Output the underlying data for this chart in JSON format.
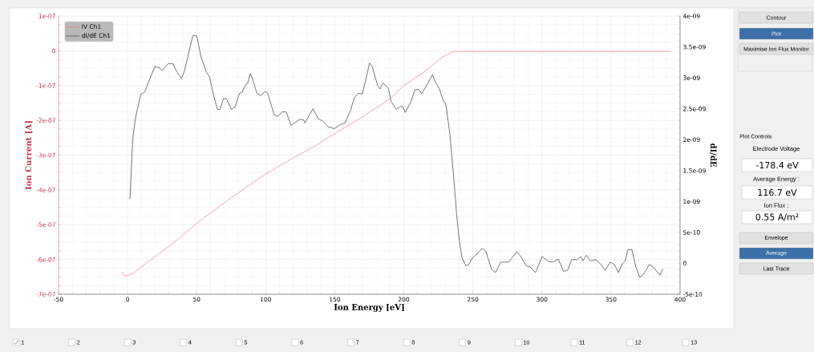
{
  "chart_data": {
    "type": "line",
    "xlabel": "Ion Energy [eV]",
    "ylabel": "Ion Current [A]",
    "y2label": "dI/dE",
    "xlim": [
      -50,
      400
    ],
    "xticks": [
      -50,
      0,
      50,
      100,
      150,
      200,
      250,
      300,
      350,
      400
    ],
    "ylim": [
      -7e-07,
      1e-07
    ],
    "yticks": [
      {
        "value": -7e-07,
        "label": "-7e-07"
      },
      {
        "value": -6e-07,
        "label": "-6e-07"
      },
      {
        "value": -5e-07,
        "label": "-5e-07"
      },
      {
        "value": -4e-07,
        "label": "-4e-07"
      },
      {
        "value": -3e-07,
        "label": "-3e-07"
      },
      {
        "value": -2e-07,
        "label": "-2e-07"
      },
      {
        "value": -1e-07,
        "label": "-1e-07"
      },
      0,
      {
        "value": 1e-07,
        "label": "1e-07"
      }
    ],
    "y2lim": [
      -5e-10,
      4e-09
    ],
    "y2ticks": [
      {
        "value": -5e-10,
        "label": "-5e-10"
      },
      0,
      {
        "value": 5e-10,
        "label": "5e-10"
      },
      {
        "value": 1e-09,
        "label": "1e-09"
      },
      {
        "value": 1.5e-09,
        "label": "1.5e-09"
      },
      {
        "value": 2e-09,
        "label": "2e-09"
      },
      {
        "value": 2.5e-09,
        "label": "2.5e-09"
      },
      {
        "value": 3e-09,
        "label": "3e-09"
      },
      {
        "value": 3.5e-09,
        "label": "3.5e-09"
      },
      {
        "value": 4e-09,
        "label": "4e-09"
      }
    ],
    "grid": true,
    "legend": "top left",
    "series": [
      {
        "name": "IV Ch1",
        "color": "#f47c7c",
        "x": [
          -4,
          -2,
          3,
          12,
          24,
          37,
          50,
          62,
          72,
          85,
          100,
          120,
          135,
          150,
          165,
          175,
          190,
          200,
          215,
          228,
          236,
          250,
          300,
          350,
          393
        ],
        "values": [
          -6.35e-07,
          -6.48e-07,
          -6.42e-07,
          -6.15e-07,
          -5.8e-07,
          -5.4e-07,
          -4.96e-07,
          -4.6e-07,
          -4.31e-07,
          -3.95e-07,
          -3.54e-07,
          -3.08e-07,
          -2.75e-07,
          -2.38e-07,
          -2.02e-07,
          -1.77e-07,
          -1.38e-07,
          -1e-07,
          -6e-08,
          -1.8e-08,
          -2e-09,
          -2e-09,
          -2e-09,
          -2e-09,
          -2e-09
        ]
      },
      {
        "name": "dI/dE Ch1",
        "color": "#3a3a3a",
        "axis": "y2",
        "x": [
          1.7,
          2.7,
          3.7,
          5.6,
          9.5,
          12.4,
          16.2,
          19.7,
          23,
          25,
          29.4,
          32.7,
          35.6,
          39,
          41,
          47.2,
          50.1,
          53,
          56.9,
          59.4,
          61.7,
          65,
          66.9,
          69.4,
          71.4,
          75.2,
          77.8,
          81,
          82.9,
          85.5,
          86.9,
          88.8,
          90.7,
          93.6,
          96.5,
          99.4,
          101.4,
          106.2,
          109,
          111.9,
          114.8,
          118.4,
          120.7,
          124.6,
          127.5,
          128.4,
          134.2,
          138.1,
          142,
          144.9,
          149.7,
          154.5,
          157.4,
          161.3,
          164.2,
          167.1,
          170,
          175.2,
          177.1,
          181,
          182.9,
          184.9,
          188.8,
          190.7,
          194.6,
          197.5,
          199.4,
          201,
          205.2,
          208.1,
          211,
          213,
          220.7,
          223.6,
          225.6,
          228.5,
          230.4,
          233.3,
          235.9,
          238.2,
          240.1,
          242.1,
          245,
          246.9,
          249.8,
          253.7,
          256.6,
          259.5,
          263.4,
          266.3,
          270.2,
          276,
          281.8,
          284.7,
          288.6,
          291.5,
          295.3,
          300.2,
          305,
          307.9,
          311.8,
          315.7,
          318.6,
          321.5,
          325.4,
          328.3,
          329.7,
          332.2,
          335.1,
          339,
          342.9,
          345.7,
          349.6,
          352.5,
          355.4,
          358.3,
          360.3,
          362.2,
          365.1,
          368,
          370.9,
          373.8,
          377.7,
          380.6,
          385.5,
          387.4
        ],
        "values": [
          1.04e-09,
          1.54e-09,
          2.01e-09,
          2.34e-09,
          2.73e-09,
          2.77e-09,
          2.99e-09,
          3.18e-09,
          3.16e-09,
          3.12e-09,
          3.23e-09,
          3.23e-09,
          3.1e-09,
          2.99e-09,
          3.1e-09,
          3.68e-09,
          3.68e-09,
          3.35e-09,
          3.1e-09,
          3.01e-09,
          2.77e-09,
          2.49e-09,
          2.49e-09,
          2.66e-09,
          2.67e-09,
          2.49e-09,
          2.53e-09,
          2.75e-09,
          2.77e-09,
          2.89e-09,
          2.91e-09,
          3.07e-09,
          2.97e-09,
          2.75e-09,
          2.71e-09,
          2.78e-09,
          2.75e-09,
          2.4e-09,
          2.38e-09,
          2.45e-09,
          2.45e-09,
          2.23e-09,
          2.27e-09,
          2.33e-09,
          2.32e-09,
          2.27e-09,
          2.5e-09,
          2.34e-09,
          2.29e-09,
          2.21e-09,
          2.18e-09,
          2.25e-09,
          2.27e-09,
          2.47e-09,
          2.68e-09,
          2.75e-09,
          2.74e-09,
          3.24e-09,
          3.18e-09,
          2.88e-09,
          2.82e-09,
          2.92e-09,
          2.83e-09,
          2.62e-09,
          2.49e-09,
          2.54e-09,
          2.53e-09,
          2.44e-09,
          2.62e-09,
          2.81e-09,
          2.81e-09,
          2.74e-09,
          3.05e-09,
          2.9e-09,
          2.83e-09,
          2.64e-09,
          2.57e-09,
          2.1e-09,
          1.45e-09,
          8e-10,
          3.7e-10,
          9e-11,
          -4e-11,
          -2e-11,
          9e-11,
          1.7e-10,
          2.4e-10,
          1.9e-10,
          -9e-11,
          -1.5e-10,
          2e-11,
          2e-11,
          1.9e-10,
          1.1e-10,
          -4e-11,
          -6e-11,
          -1.5e-10,
          1.1e-10,
          3e-11,
          2e-11,
          7e-11,
          -1.3e-10,
          -1.1e-10,
          6e-11,
          6e-11,
          1.1e-10,
          4e-11,
          1.3e-10,
          4e-11,
          6e-11,
          -2e-11,
          -1.1e-10,
          2e-11,
          -2e-11,
          -1.5e-10,
          0,
          4e-11,
          2.2e-10,
          2.2e-10,
          -6e-11,
          -2.3e-10,
          -1.7e-10,
          -2e-11,
          -6e-11,
          -1.9e-10,
          -9e-11
        ]
      }
    ],
    "annotations": [
      "Contour",
      "Plot",
      "Maximise Ion Flux Monitor",
      "Plot Controls",
      "Electrode Voltage",
      "-178.4 eV",
      "Average Energy :",
      "116.7 eV",
      "Ion Flux :",
      "0.55 A/m²",
      "Envelope",
      "Average",
      "Last Trace",
      "1",
      "2",
      "3",
      "4",
      "5",
      "6",
      "7",
      "8",
      "9",
      "10",
      "11",
      "12",
      "13"
    ]
  }
}
